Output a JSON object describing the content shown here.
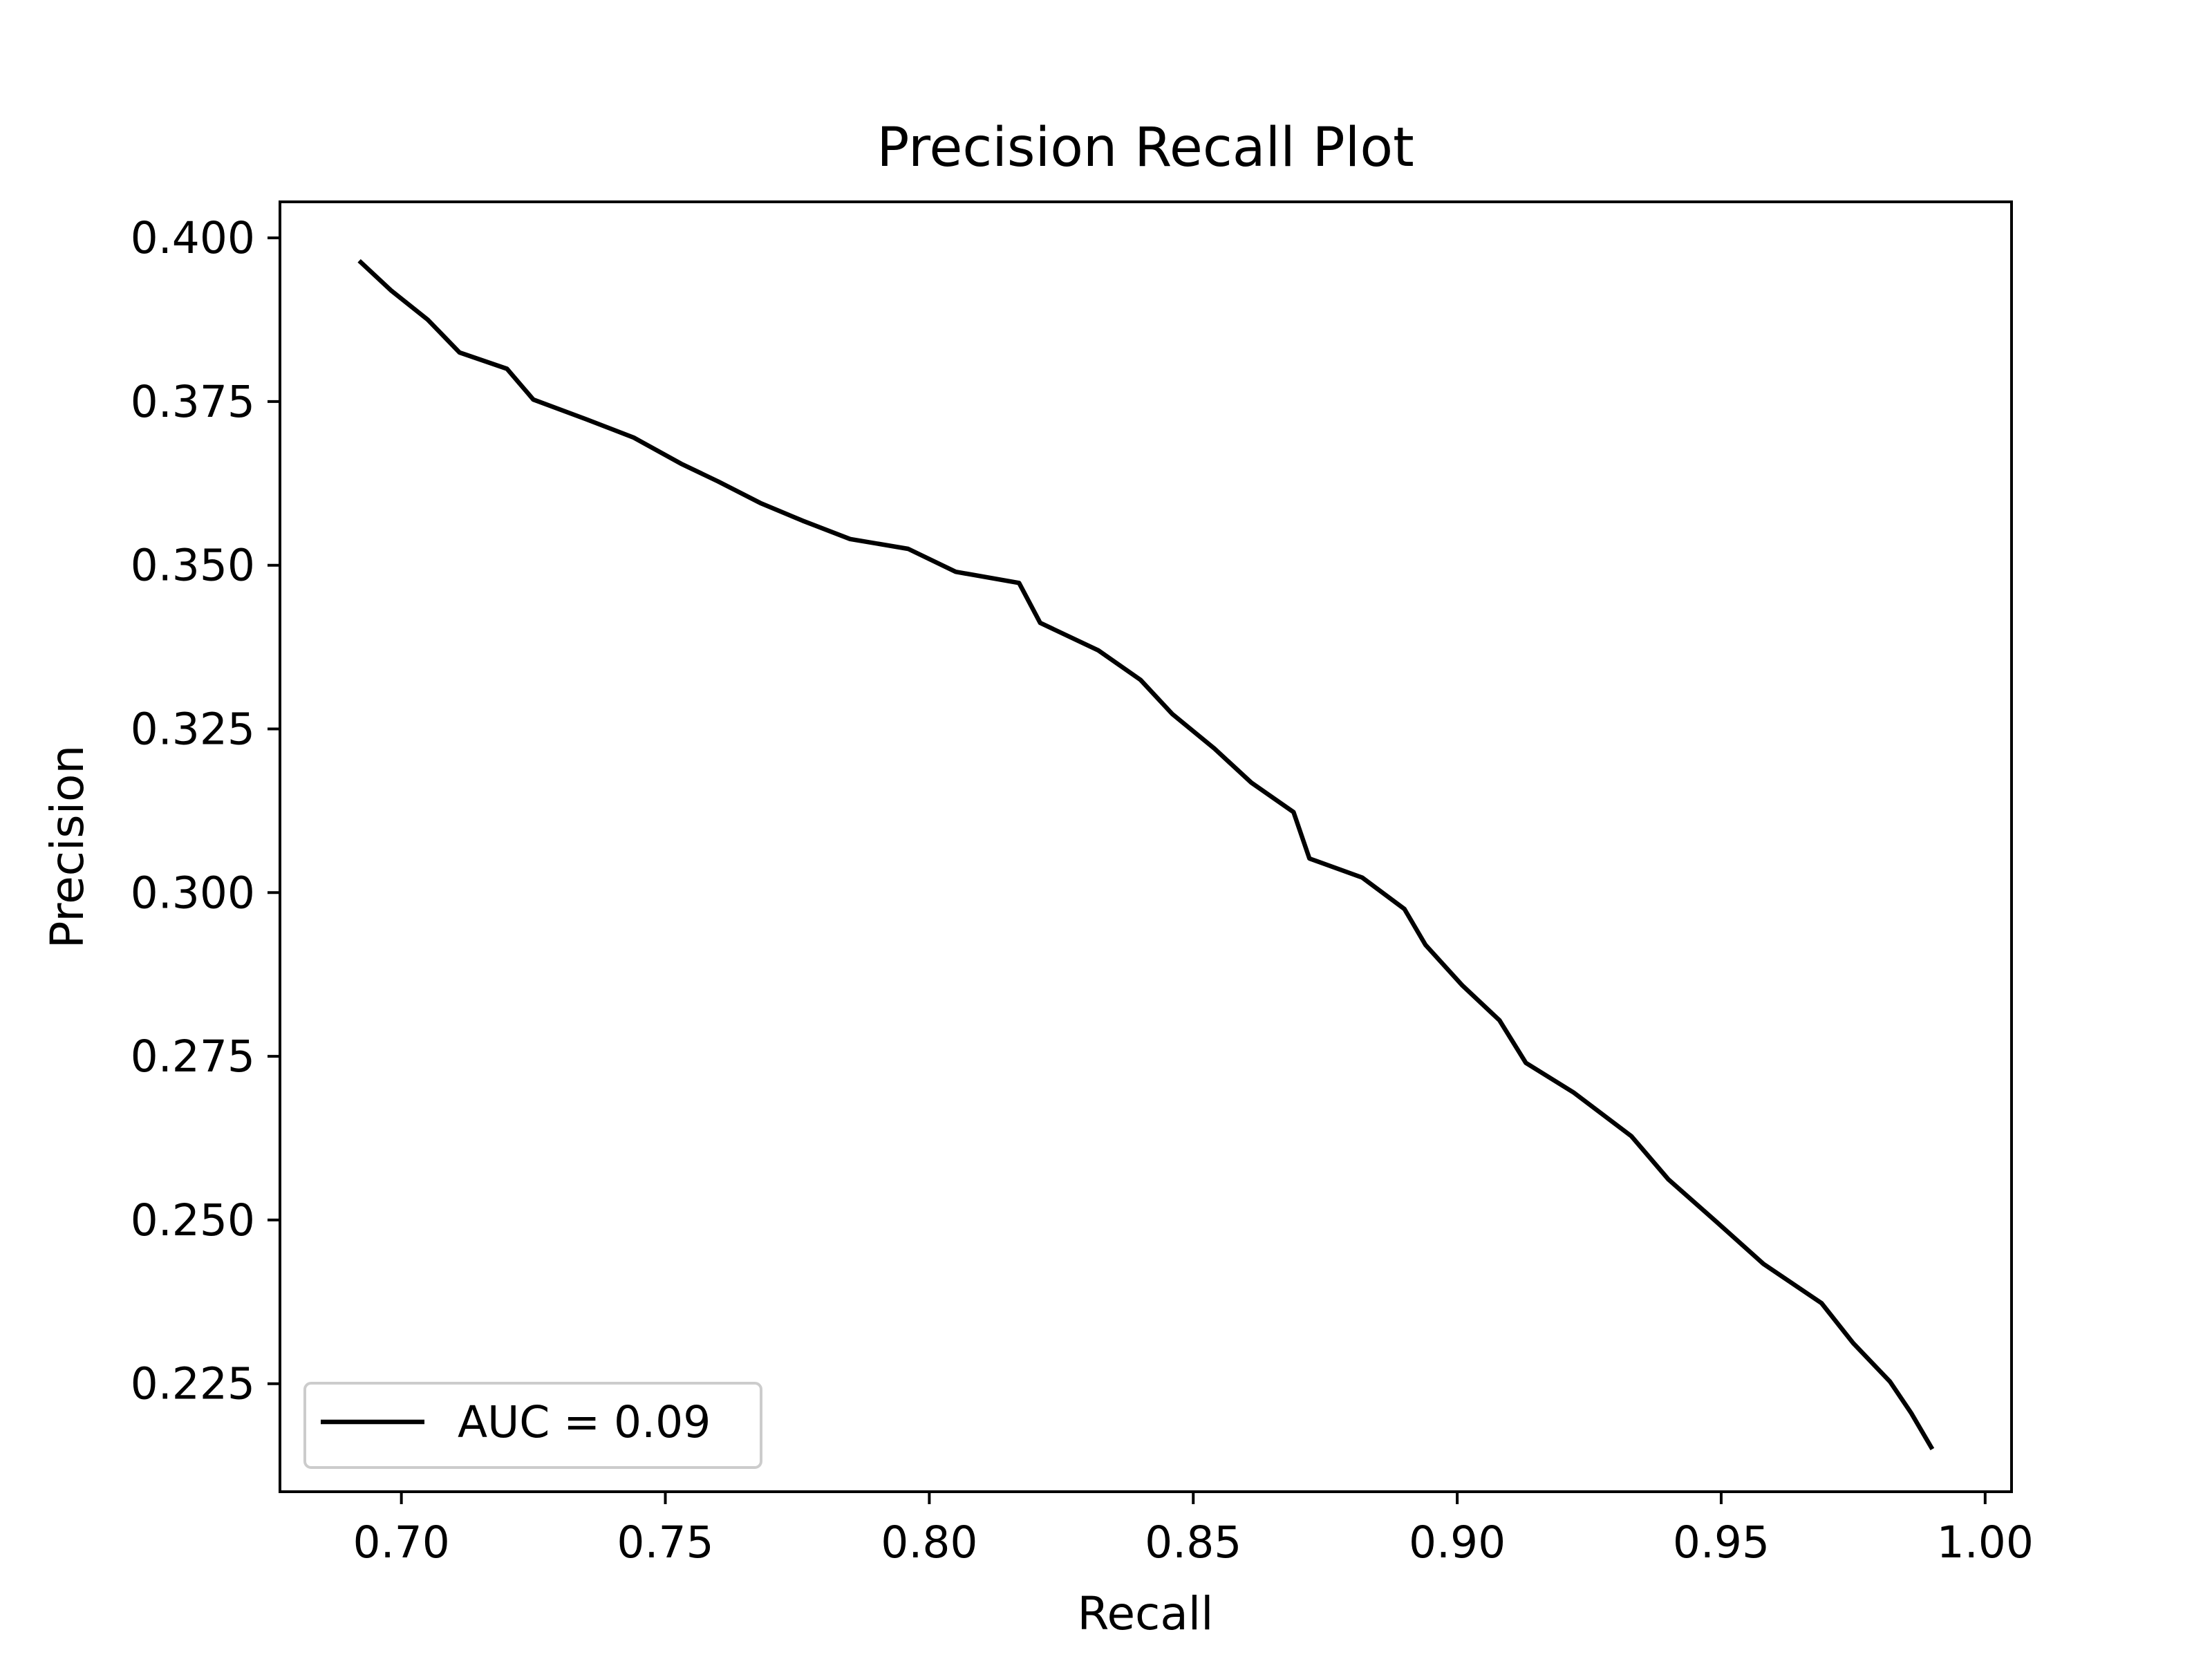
{
  "chart_data": {
    "type": "line",
    "title": "Precision Recall Plot",
    "xlabel": "Recall",
    "ylabel": "Precision",
    "xlim": [
      0.677,
      1.005
    ],
    "ylim": [
      0.2085,
      0.4055
    ],
    "xticks": [
      0.7,
      0.75,
      0.8,
      0.85,
      0.9,
      0.95,
      1.0
    ],
    "xtick_labels": [
      "0.70",
      "0.75",
      "0.80",
      "0.85",
      "0.90",
      "0.95",
      "1.00"
    ],
    "yticks": [
      0.225,
      0.25,
      0.275,
      0.3,
      0.325,
      0.35,
      0.375,
      0.4
    ],
    "ytick_labels": [
      "0.225",
      "0.250",
      "0.275",
      "0.300",
      "0.325",
      "0.350",
      "0.375",
      "0.400"
    ],
    "grid": false,
    "legend_position": "lower-left",
    "series": [
      {
        "name": "AUC = 0.09",
        "color": "#000000",
        "x": [
          0.692,
          0.698,
          0.705,
          0.711,
          0.72,
          0.725,
          0.735,
          0.744,
          0.753,
          0.76,
          0.768,
          0.776,
          0.785,
          0.796,
          0.805,
          0.817,
          0.821,
          0.832,
          0.84,
          0.846,
          0.854,
          0.861,
          0.869,
          0.872,
          0.882,
          0.89,
          0.894,
          0.901,
          0.908,
          0.913,
          0.922,
          0.933,
          0.94,
          0.949,
          0.958,
          0.969,
          0.975,
          0.982,
          0.986,
          0.99
        ],
        "y": [
          0.3965,
          0.392,
          0.3875,
          0.3825,
          0.38,
          0.3753,
          0.3723,
          0.3695,
          0.3655,
          0.3628,
          0.3595,
          0.3568,
          0.354,
          0.3525,
          0.349,
          0.3473,
          0.3412,
          0.337,
          0.3325,
          0.3273,
          0.322,
          0.3168,
          0.3123,
          0.3052,
          0.3023,
          0.2975,
          0.292,
          0.2858,
          0.2805,
          0.274,
          0.2695,
          0.2628,
          0.2562,
          0.2498,
          0.2433,
          0.2373,
          0.2312,
          0.2253,
          0.2205,
          0.215
        ]
      }
    ]
  }
}
